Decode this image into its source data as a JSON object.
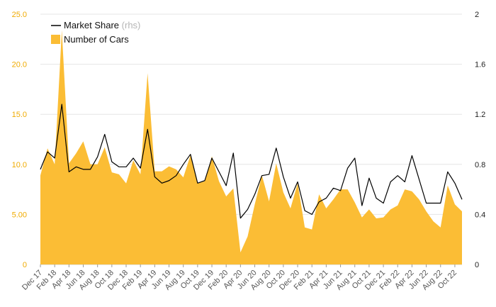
{
  "chart_data": {
    "type": "area",
    "legend": {
      "placement": "top-left"
    },
    "grid": "horizontal",
    "colors": {
      "area": "#fbbd35",
      "line": "#000000",
      "left_ticks": "#f0ab00",
      "right_ticks": "#222222",
      "grid": "#e5e5e5"
    },
    "left_axis": {
      "ylim": [
        0,
        25
      ],
      "ticks": [
        "0",
        "5.00",
        "10.0",
        "15.0",
        "20.0",
        "25.0"
      ]
    },
    "right_axis": {
      "ylim": [
        0,
        2
      ],
      "ticks": [
        "0",
        "0.4",
        "0.8",
        "1.2",
        "1.6",
        "2"
      ]
    },
    "x_tick_labels": [
      "Dec 17",
      "Feb 18",
      "Apr 18",
      "Jun 18",
      "Aug 18",
      "Oct 18",
      "Dec 18",
      "Feb 19",
      "Apr 19",
      "Jun 19",
      "Aug 19",
      "Oct 19",
      "Dec 19",
      "Feb 20",
      "Apr 20",
      "Jun 20",
      "Aug 20",
      "Oct 20",
      "Dec 20",
      "Feb 21",
      "Apr 21",
      "Jun 21",
      "Aug 21",
      "Oct 21",
      "Dec 21",
      "Feb 22",
      "Apr 22",
      "Jun 22",
      "Aug 22",
      "Oct 22"
    ],
    "x": [
      "2017-12",
      "2018-01",
      "2018-02",
      "2018-03",
      "2018-04",
      "2018-05",
      "2018-06",
      "2018-07",
      "2018-08",
      "2018-09",
      "2018-10",
      "2018-11",
      "2018-12",
      "2019-01",
      "2019-02",
      "2019-03",
      "2019-04",
      "2019-05",
      "2019-06",
      "2019-07",
      "2019-08",
      "2019-09",
      "2019-10",
      "2019-11",
      "2019-12",
      "2020-01",
      "2020-02",
      "2020-03",
      "2020-04",
      "2020-05",
      "2020-06",
      "2020-07",
      "2020-08",
      "2020-09",
      "2020-10",
      "2020-11",
      "2020-12",
      "2021-01",
      "2021-02",
      "2021-03",
      "2021-04",
      "2021-05",
      "2021-06",
      "2021-07",
      "2021-08",
      "2021-09",
      "2021-10",
      "2021-11",
      "2021-12",
      "2022-01",
      "2022-02",
      "2022-03",
      "2022-04",
      "2022-05",
      "2022-06",
      "2022-07",
      "2022-08",
      "2022-09",
      "2022-10",
      "2022-11"
    ],
    "series": [
      {
        "name": "Number of Cars",
        "axis": "left",
        "style": "area",
        "values": [
          8.9,
          11.6,
          10.0,
          23.4,
          10.1,
          11.1,
          12.3,
          10.0,
          10.0,
          11.7,
          9.2,
          9.0,
          8.1,
          10.4,
          9.0,
          19.1,
          9.3,
          9.3,
          9.8,
          9.5,
          8.7,
          10.9,
          8.1,
          8.3,
          10.8,
          8.3,
          6.8,
          7.6,
          1.2,
          2.8,
          6.0,
          8.9,
          6.3,
          10.1,
          7.2,
          5.6,
          8.1,
          3.7,
          3.5,
          7.0,
          5.6,
          6.5,
          7.5,
          7.5,
          6.2,
          4.7,
          5.5,
          4.6,
          4.7,
          5.5,
          5.9,
          7.5,
          7.3,
          6.5,
          5.3,
          4.3,
          3.7,
          7.9,
          6.0,
          5.3
        ]
      },
      {
        "name": "Market Share",
        "axis": "right",
        "style": "line",
        "legend_note": "(rhs)",
        "values": [
          0.76,
          0.9,
          0.85,
          1.28,
          0.74,
          0.78,
          0.76,
          0.76,
          0.86,
          1.04,
          0.82,
          0.78,
          0.78,
          0.85,
          0.77,
          1.08,
          0.7,
          0.65,
          0.67,
          0.71,
          0.8,
          0.88,
          0.65,
          0.67,
          0.85,
          0.74,
          0.63,
          0.89,
          0.37,
          0.44,
          0.56,
          0.71,
          0.72,
          0.93,
          0.7,
          0.53,
          0.66,
          0.43,
          0.4,
          0.5,
          0.53,
          0.61,
          0.59,
          0.77,
          0.85,
          0.47,
          0.69,
          0.53,
          0.49,
          0.66,
          0.71,
          0.66,
          0.87,
          0.68,
          0.49,
          0.49,
          0.49,
          0.74,
          0.65,
          0.52
        ]
      }
    ]
  }
}
